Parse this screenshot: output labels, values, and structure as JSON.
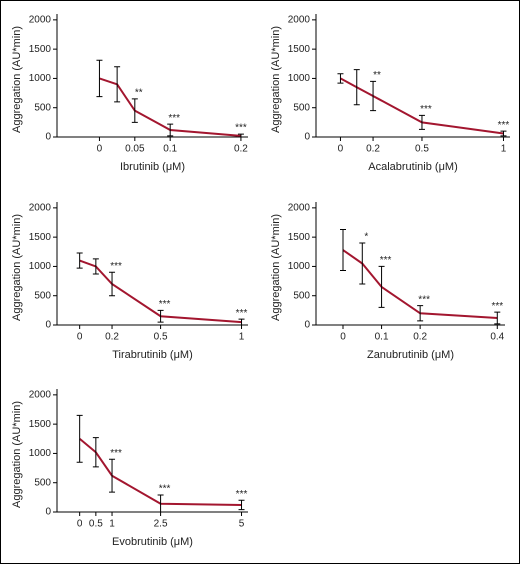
{
  "chart_data": [
    {
      "type": "line",
      "xlabel": "Ibrutinib (μM)",
      "ylabel": "Aggregation (AU*min)",
      "x": [
        0,
        0.025,
        0.05,
        0.1,
        0.2
      ],
      "xlim": [
        -0.06,
        0.21
      ],
      "xticks": [
        0,
        0.05,
        0.1,
        0.2
      ],
      "ylim": [
        0,
        2100
      ],
      "yticks": [
        0,
        500,
        1000,
        1500,
        2000
      ],
      "series": [
        {
          "color": "#a3162f",
          "values": [
            1000,
            900,
            450,
            120,
            20
          ],
          "errors": [
            310,
            300,
            200,
            100,
            30
          ]
        }
      ],
      "annotations": [
        null,
        null,
        "**",
        "***",
        "***"
      ]
    },
    {
      "type": "line",
      "xlabel": "Acalabrutinib (μM)",
      "ylabel": "Aggregation (AU*min)",
      "x": [
        0,
        0.1,
        0.2,
        0.5,
        1
      ],
      "xlim": [
        -0.15,
        1.04
      ],
      "xticks": [
        0,
        0.2,
        0.5,
        1
      ],
      "ylim": [
        0,
        2100
      ],
      "yticks": [
        0,
        500,
        1000,
        1500,
        2000
      ],
      "series": [
        {
          "color": "#a3162f",
          "values": [
            1000,
            850,
            700,
            250,
            60
          ],
          "errors": [
            80,
            300,
            250,
            120,
            40
          ]
        }
      ],
      "annotations": [
        null,
        null,
        "**",
        "***",
        "***"
      ]
    },
    {
      "type": "line",
      "xlabel": "Tirabrutinib (μM)",
      "ylabel": "Aggregation (AU*min)",
      "x": [
        0,
        0.1,
        0.2,
        0.5,
        1
      ],
      "xlim": [
        -0.14,
        1.04
      ],
      "xticks": [
        0,
        0.2,
        0.5,
        1
      ],
      "ylim": [
        0,
        2100
      ],
      "yticks": [
        0,
        500,
        1000,
        1500,
        2000
      ],
      "series": [
        {
          "color": "#a3162f",
          "values": [
            1100,
            1000,
            700,
            150,
            50
          ],
          "errors": [
            130,
            130,
            200,
            100,
            50
          ]
        }
      ],
      "annotations": [
        null,
        null,
        "***",
        "***",
        "***"
      ]
    },
    {
      "type": "line",
      "xlabel": "Zanubrutinib (μM)",
      "ylabel": "Aggregation (AU*min)",
      "x": [
        0,
        0.05,
        0.1,
        0.2,
        0.4
      ],
      "xlim": [
        -0.07,
        0.42
      ],
      "xticks": [
        0,
        0.1,
        0.2,
        0.4
      ],
      "ylim": [
        0,
        2100
      ],
      "yticks": [
        0,
        500,
        1000,
        1500,
        2000
      ],
      "series": [
        {
          "color": "#a3162f",
          "values": [
            1280,
            1050,
            650,
            200,
            120
          ],
          "errors": [
            350,
            350,
            350,
            130,
            100
          ]
        }
      ],
      "annotations": [
        null,
        "*",
        "***",
        "***",
        "***"
      ]
    },
    {
      "type": "line",
      "xlabel": "Evobrutinib (μM)",
      "ylabel": "Aggregation (AU*min)",
      "x": [
        0,
        0.5,
        1,
        2.5,
        5
      ],
      "xlim": [
        -0.7,
        5.2
      ],
      "xticks": [
        0,
        0.5,
        1,
        2.5,
        5
      ],
      "ylim": [
        0,
        2100
      ],
      "yticks": [
        0,
        500,
        1000,
        1500,
        2000
      ],
      "series": [
        {
          "color": "#a3162f",
          "values": [
            1250,
            1020,
            620,
            140,
            120
          ],
          "errors": [
            400,
            250,
            280,
            150,
            80
          ]
        }
      ],
      "annotations": [
        null,
        null,
        "***",
        "***",
        "***"
      ]
    }
  ]
}
